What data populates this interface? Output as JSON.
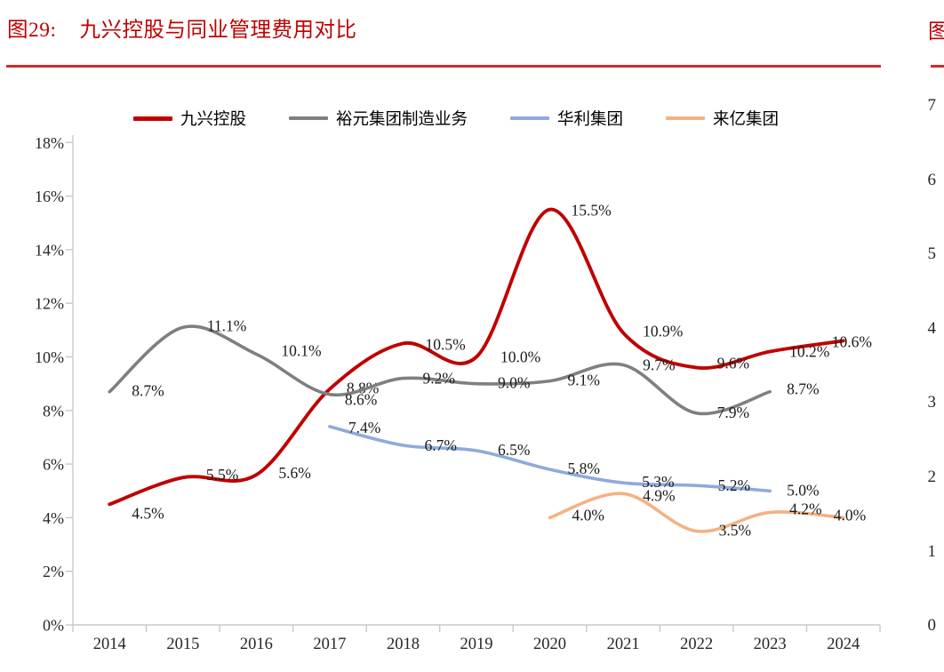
{
  "page": {
    "title_prefix": "图29:",
    "title": "九兴控股与同业管理费用对比"
  },
  "adjacent_figure": {
    "title_fragment": "图",
    "axis_values": [
      "7",
      "6",
      "5",
      "4",
      "3",
      "2",
      "1",
      "0"
    ]
  },
  "chart_data": {
    "type": "line",
    "title": "九兴控股与同业管理费用对比",
    "categories": [
      "2014",
      "2015",
      "2016",
      "2017",
      "2018",
      "2019",
      "2020",
      "2021",
      "2022",
      "2023",
      "2024"
    ],
    "xlabel": "",
    "ylabel": "",
    "ylim": [
      0,
      18
    ],
    "y_axis": {
      "min": 0,
      "max": 18,
      "step": 2,
      "suffix": "%"
    },
    "grid": false,
    "legend_position": "top",
    "line_style": "smooth",
    "label_format": "one_decimal_percent",
    "series": [
      {
        "name": "九兴控股",
        "color": "#c00000",
        "stroke_width": 3.9,
        "values": [
          4.5,
          5.5,
          5.6,
          8.8,
          10.5,
          10.0,
          15.5,
          10.9,
          9.6,
          10.2,
          10.6
        ],
        "label_offsets": [
          [
            25,
            16
          ],
          [
            26,
            3
          ],
          [
            25,
            4
          ],
          [
            19,
            5
          ],
          [
            25,
            7
          ],
          [
            27,
            6
          ],
          [
            24,
            7
          ],
          [
            22,
            4
          ],
          [
            23,
            1
          ],
          [
            22,
            6
          ],
          [
            -13,
            7
          ]
        ]
      },
      {
        "name": "裕元集团制造业务",
        "color": "#7f7f7f",
        "stroke_width": 3.6,
        "values": [
          8.7,
          11.1,
          10.1,
          8.6,
          9.2,
          9.0,
          9.1,
          9.7,
          7.9,
          8.7,
          null
        ],
        "label_offsets": [
          [
            25,
            5
          ],
          [
            27,
            4
          ],
          [
            28,
            2
          ],
          [
            17,
            12
          ],
          [
            22,
            6
          ],
          [
            24,
            5
          ],
          [
            20,
            5
          ],
          [
            22,
            6
          ],
          [
            23,
            5
          ],
          [
            19,
            3
          ],
          null
        ]
      },
      {
        "name": "华利集团",
        "color": "#8faadc",
        "stroke_width": 3.6,
        "values": [
          null,
          null,
          null,
          7.4,
          6.7,
          6.5,
          5.8,
          5.3,
          5.2,
          5.0,
          null
        ],
        "label_offsets": [
          null,
          null,
          null,
          [
            21,
            7
          ],
          [
            24,
            6
          ],
          [
            24,
            5
          ],
          [
            20,
            5
          ],
          [
            21,
            5
          ],
          [
            24,
            6
          ],
          [
            19,
            5
          ],
          null
        ]
      },
      {
        "name": "来亿集团",
        "color": "#f4b183",
        "stroke_width": 3.6,
        "values": [
          null,
          null,
          null,
          null,
          null,
          null,
          4.0,
          4.9,
          3.5,
          4.2,
          4.0
        ],
        "label_offsets": [
          null,
          null,
          null,
          null,
          null,
          null,
          [
            25,
            3
          ],
          [
            22,
            8
          ],
          [
            25,
            5
          ],
          [
            22,
            2
          ],
          [
            -11,
            3
          ]
        ]
      }
    ]
  }
}
